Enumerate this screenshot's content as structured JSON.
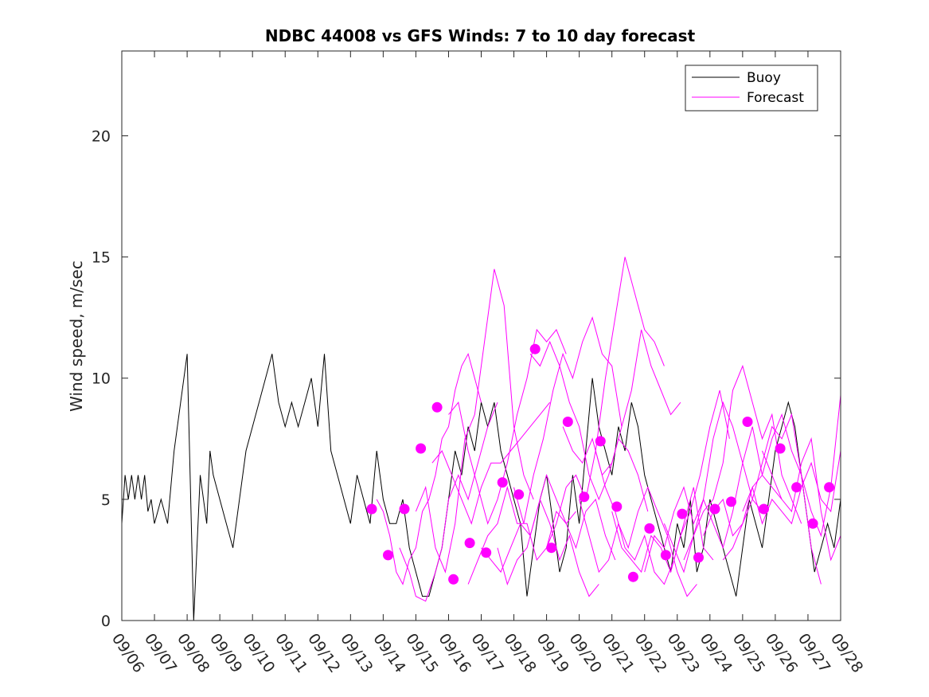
{
  "chart_data": {
    "type": "line",
    "title": "NDBC 44008 vs GFS Winds: 7 to 10 day forecast",
    "xlabel": "",
    "ylabel": "Wind speed, m/sec",
    "xlim": [
      0,
      22
    ],
    "ylim": [
      0,
      23.5
    ],
    "x_tick_labels": [
      "09/06",
      "09/07",
      "09/08",
      "09/09",
      "09/10",
      "09/11",
      "09/12",
      "09/13",
      "09/14",
      "09/15",
      "09/16",
      "09/17",
      "09/18",
      "09/19",
      "09/20",
      "09/21",
      "09/22",
      "09/23",
      "09/24",
      "09/25",
      "09/26",
      "09/27",
      "09/28"
    ],
    "y_ticks": [
      0,
      5,
      10,
      15,
      20
    ],
    "y_tick_labels": [
      "0",
      "5",
      "10",
      "15",
      "20"
    ],
    "legend": {
      "placement": "top-right",
      "entries": [
        "Buoy",
        "Forecast"
      ]
    },
    "colors": {
      "buoy": "#000000",
      "forecast": "#ff00ff",
      "axis": "#262626"
    },
    "series": [
      {
        "name": "Buoy",
        "x": [
          0.0,
          0.1,
          0.2,
          0.3,
          0.4,
          0.5,
          0.6,
          0.7,
          0.8,
          0.9,
          1.0,
          1.2,
          1.4,
          1.6,
          1.8,
          2.0,
          2.2,
          2.4,
          2.6,
          2.7,
          2.8,
          3.0,
          3.2,
          3.4,
          3.6,
          3.8,
          4.0,
          4.2,
          4.4,
          4.6,
          4.8,
          5.0,
          5.2,
          5.4,
          5.6,
          5.8,
          6.0,
          6.2,
          6.4,
          6.6,
          6.8,
          7.0,
          7.2,
          7.4,
          7.6,
          7.8,
          8.0,
          8.2,
          8.4,
          8.6,
          8.8,
          9.0,
          9.2,
          9.4,
          9.6,
          9.8,
          10.0,
          10.2,
          10.4,
          10.6,
          10.8,
          11.0,
          11.2,
          11.4,
          11.6,
          11.8,
          12.0,
          12.2,
          12.4,
          12.6,
          12.8,
          13.0,
          13.2,
          13.4,
          13.6,
          13.8,
          14.0,
          14.2,
          14.4,
          14.6,
          14.8,
          15.0,
          15.2,
          15.4,
          15.6,
          15.8,
          16.0,
          16.2,
          16.4,
          16.6,
          16.8,
          17.0,
          17.2,
          17.4,
          17.6,
          17.8,
          18.0,
          18.2,
          18.4,
          18.6,
          18.8,
          19.0,
          19.2,
          19.4,
          19.6,
          19.8,
          20.0,
          20.2,
          20.4,
          20.6,
          20.8,
          21.0,
          21.2,
          21.4,
          21.6,
          21.8,
          22.0
        ],
        "values": [
          4.0,
          6.0,
          5.0,
          6.0,
          5.0,
          6.0,
          5.0,
          6.0,
          4.5,
          5.0,
          4.0,
          5.0,
          4.0,
          7.0,
          9.0,
          11.0,
          0.0,
          6.0,
          4.0,
          7.0,
          6.0,
          5.0,
          4.0,
          3.0,
          5.0,
          7.0,
          8.0,
          9.0,
          10.0,
          11.0,
          9.0,
          8.0,
          9.0,
          8.0,
          9.0,
          10.0,
          8.0,
          11.0,
          7.0,
          6.0,
          5.0,
          4.0,
          6.0,
          5.0,
          4.0,
          7.0,
          5.0,
          4.0,
          4.0,
          5.0,
          3.0,
          2.0,
          1.0,
          1.0,
          2.0,
          3.0,
          5.0,
          7.0,
          6.0,
          8.0,
          7.0,
          9.0,
          8.0,
          9.0,
          7.0,
          6.0,
          5.0,
          4.0,
          1.0,
          3.0,
          5.0,
          6.0,
          4.0,
          2.0,
          3.0,
          6.0,
          4.0,
          7.0,
          10.0,
          8.0,
          7.0,
          6.0,
          8.0,
          7.0,
          9.0,
          8.0,
          6.0,
          5.0,
          4.0,
          3.0,
          2.0,
          4.0,
          3.0,
          5.0,
          2.0,
          3.0,
          5.0,
          4.0,
          3.0,
          2.0,
          1.0,
          3.0,
          5.0,
          4.0,
          3.0,
          5.0,
          7.0,
          8.0,
          9.0,
          8.0,
          6.0,
          4.0,
          2.0,
          3.0,
          4.0,
          3.0,
          5.0
        ]
      },
      {
        "name": "Forecast",
        "traces": [
          {
            "x": [
              7.8,
              8.0,
              8.2,
              8.4,
              8.6,
              8.8,
              9.0,
              9.2,
              9.4,
              9.6,
              9.8,
              10.0,
              10.2,
              10.4,
              10.6,
              10.8,
              11.0
            ],
            "values": [
              5.0,
              4.5,
              3.5,
              2.0,
              1.5,
              2.5,
              3.0,
              4.5,
              5.0,
              6.0,
              7.5,
              8.0,
              9.5,
              10.5,
              11.0,
              10.0,
              9.0
            ]
          },
          {
            "x": [
              8.5,
              8.8,
              9.0,
              9.3,
              9.6,
              9.8,
              10.0,
              10.3,
              10.6,
              10.9,
              11.2,
              11.5
            ],
            "values": [
              3.0,
              2.0,
              1.0,
              0.8,
              2.0,
              3.0,
              5.0,
              6.0,
              5.0,
              6.5,
              8.0,
              9.0
            ]
          },
          {
            "x": [
              9.0,
              9.3,
              9.6,
              9.9,
              10.2,
              10.5,
              10.8,
              11.1,
              11.4,
              11.7,
              12.0,
              12.3,
              12.6
            ],
            "values": [
              4.5,
              5.5,
              3.0,
              2.0,
              4.0,
              7.5,
              8.5,
              11.5,
              14.5,
              13.0,
              8.0,
              6.0,
              5.0
            ]
          },
          {
            "x": [
              9.5,
              9.8,
              10.1,
              10.4,
              10.7,
              11.0,
              11.3,
              11.6,
              11.9,
              12.2,
              12.5,
              12.8,
              13.1
            ],
            "values": [
              6.5,
              7.0,
              6.0,
              5.0,
              4.0,
              5.5,
              6.5,
              6.5,
              7.0,
              7.5,
              8.0,
              8.5,
              9.0
            ]
          },
          {
            "x": [
              10.0,
              10.3,
              10.6,
              10.9,
              11.2,
              11.5,
              11.8,
              12.1,
              12.4,
              12.7,
              13.0,
              13.3,
              13.6
            ],
            "values": [
              8.5,
              9.0,
              7.0,
              5.5,
              4.0,
              5.0,
              6.5,
              8.5,
              10.0,
              12.0,
              11.5,
              12.0,
              11.0
            ]
          },
          {
            "x": [
              10.6,
              10.9,
              11.2,
              11.5,
              11.8,
              12.1,
              12.4,
              12.7,
              13.0,
              13.3,
              13.6,
              13.9
            ],
            "values": [
              1.5,
              2.5,
              3.5,
              4.0,
              5.5,
              4.0,
              4.0,
              2.5,
              3.0,
              4.5,
              4.0,
              4.5
            ]
          },
          {
            "x": [
              11.0,
              11.3,
              11.6,
              11.9,
              12.2,
              12.5,
              12.8,
              13.1,
              13.4,
              13.7,
              14.0,
              14.3,
              14.6
            ],
            "values": [
              3.0,
              2.5,
              2.0,
              3.0,
              4.0,
              3.5,
              5.0,
              4.0,
              2.5,
              3.5,
              2.0,
              1.0,
              1.5
            ]
          },
          {
            "x": [
              11.5,
              11.8,
              12.1,
              12.4,
              12.7,
              13.0,
              13.3,
              13.6,
              13.9,
              14.2,
              14.5,
              14.8,
              15.1
            ],
            "values": [
              3.0,
              1.5,
              2.5,
              3.0,
              4.5,
              6.0,
              5.0,
              4.0,
              3.0,
              4.5,
              5.0,
              3.5,
              2.5
            ]
          },
          {
            "x": [
              12.0,
              12.3,
              12.6,
              12.9,
              13.2,
              13.5,
              13.8,
              14.1,
              14.4,
              14.7,
              15.0,
              15.3
            ],
            "values": [
              5.5,
              4.0,
              6.0,
              7.5,
              9.5,
              11.0,
              10.0,
              11.5,
              12.5,
              11.0,
              10.5,
              8.0
            ]
          },
          {
            "x": [
              12.5,
              12.8,
              13.1,
              13.4,
              13.7,
              14.0,
              14.3,
              14.6,
              14.9,
              15.2,
              15.5,
              15.8,
              16.1
            ],
            "values": [
              11.0,
              10.5,
              11.5,
              10.5,
              9.0,
              8.0,
              6.0,
              5.0,
              6.0,
              7.5,
              7.0,
              6.0,
              4.5
            ]
          },
          {
            "x": [
              13.0,
              13.3,
              13.6,
              13.9,
              14.2,
              14.5,
              14.8,
              15.1,
              15.4,
              15.7,
              16.0,
              16.3,
              16.6
            ],
            "values": [
              3.0,
              4.0,
              5.5,
              6.0,
              5.0,
              7.0,
              10.0,
              12.5,
              15.0,
              13.5,
              12.0,
              11.5,
              10.5
            ]
          },
          {
            "x": [
              13.5,
              13.8,
              14.1,
              14.4,
              14.7,
              15.0,
              15.3,
              15.6,
              15.9,
              16.2,
              16.5,
              16.8,
              17.1
            ],
            "values": [
              8.0,
              7.0,
              6.5,
              7.5,
              6.0,
              6.5,
              8.0,
              9.5,
              12.0,
              10.5,
              9.5,
              8.5,
              9.0
            ]
          },
          {
            "x": [
              14.0,
              14.3,
              14.6,
              14.9,
              15.2,
              15.5,
              15.8,
              16.1,
              16.4,
              16.7,
              17.0,
              17.3,
              17.6
            ],
            "values": [
              5.0,
              3.5,
              2.0,
              2.5,
              4.0,
              3.0,
              4.5,
              5.5,
              4.5,
              3.5,
              2.0,
              1.0,
              1.5
            ]
          },
          {
            "x": [
              14.5,
              14.8,
              15.1,
              15.4,
              15.7,
              16.0,
              16.3,
              16.6,
              16.9,
              17.2,
              17.5,
              17.8,
              18.1
            ],
            "values": [
              7.0,
              5.5,
              4.5,
              3.0,
              2.5,
              3.5,
              2.0,
              1.5,
              2.5,
              4.0,
              5.5,
              3.0,
              2.5
            ]
          },
          {
            "x": [
              15.0,
              15.3,
              15.6,
              15.9,
              16.2,
              16.5,
              16.8,
              17.1,
              17.4,
              17.7,
              18.0,
              18.3,
              18.6
            ],
            "values": [
              4.5,
              3.0,
              2.5,
              2.0,
              3.5,
              3.0,
              2.0,
              3.5,
              4.5,
              6.0,
              8.0,
              9.5,
              7.5
            ]
          },
          {
            "x": [
              16.0,
              16.3,
              16.6,
              16.9,
              17.2,
              17.5,
              17.8,
              18.1,
              18.4,
              18.7,
              19.0,
              19.3,
              19.6
            ],
            "values": [
              2.0,
              3.5,
              3.0,
              4.5,
              5.5,
              4.0,
              5.0,
              7.5,
              9.0,
              8.0,
              6.5,
              5.0,
              4.5
            ]
          },
          {
            "x": [
              16.6,
              16.9,
              17.2,
              17.5,
              17.8,
              18.1,
              18.4,
              18.7,
              19.0,
              19.3,
              19.6,
              19.9,
              20.2
            ],
            "values": [
              4.0,
              3.0,
              2.0,
              3.5,
              5.0,
              4.0,
              3.0,
              4.5,
              6.5,
              8.0,
              6.0,
              5.5,
              5.0
            ]
          },
          {
            "x": [
              17.2,
              17.5,
              17.8,
              18.1,
              18.4,
              18.7,
              19.0,
              19.3,
              19.6,
              19.9,
              20.2,
              20.5,
              20.8
            ],
            "values": [
              2.5,
              3.5,
              4.5,
              5.0,
              6.5,
              9.5,
              10.5,
              9.0,
              7.5,
              8.5,
              6.0,
              5.0,
              4.0
            ]
          },
          {
            "x": [
              17.8,
              18.1,
              18.4,
              18.7,
              19.0,
              19.3,
              19.6,
              19.9,
              20.2,
              20.5,
              20.8,
              21.1,
              21.4
            ],
            "values": [
              3.5,
              4.5,
              5.0,
              3.5,
              4.0,
              5.5,
              6.0,
              7.5,
              8.5,
              7.0,
              6.0,
              3.0,
              1.5
            ]
          },
          {
            "x": [
              18.4,
              18.7,
              19.0,
              19.3,
              19.6,
              19.9,
              20.2,
              20.5,
              20.8,
              21.1,
              21.4,
              21.7,
              22.0
            ],
            "values": [
              2.5,
              3.0,
              4.0,
              5.0,
              6.5,
              8.0,
              7.5,
              8.5,
              6.0,
              4.5,
              3.5,
              5.5,
              9.3
            ]
          },
          {
            "x": [
              19.0,
              19.3,
              19.6,
              19.9,
              20.2,
              20.5,
              20.8,
              21.1,
              21.4,
              21.7,
              22.0
            ],
            "values": [
              4.5,
              5.5,
              4.0,
              5.0,
              4.5,
              4.0,
              5.5,
              6.5,
              5.0,
              4.5,
              7.0
            ]
          },
          {
            "x": [
              19.6,
              19.9,
              20.2,
              20.5,
              20.8,
              21.1,
              21.4,
              21.7,
              22.0
            ],
            "values": [
              7.0,
              6.0,
              5.0,
              4.5,
              6.5,
              7.5,
              4.5,
              2.5,
              3.5
            ]
          }
        ],
        "markers": {
          "x": [
            7.65,
            8.15,
            8.65,
            9.15,
            9.65,
            10.15,
            10.65,
            11.15,
            11.65,
            12.15,
            12.65,
            13.15,
            13.65,
            14.15,
            14.65,
            15.15,
            15.65,
            16.15,
            16.65,
            17.15,
            17.65,
            18.15,
            18.65,
            19.15,
            19.65,
            20.15,
            20.65,
            21.15,
            21.65
          ],
          "values": [
            4.6,
            2.7,
            4.6,
            7.1,
            8.8,
            1.7,
            3.2,
            2.8,
            5.7,
            5.2,
            11.2,
            3.0,
            8.2,
            5.1,
            7.4,
            4.7,
            1.8,
            3.8,
            2.7,
            4.4,
            2.6,
            4.6,
            4.9,
            8.2,
            4.6,
            7.1,
            5.5,
            4.0,
            5.5
          ]
        }
      }
    ]
  }
}
